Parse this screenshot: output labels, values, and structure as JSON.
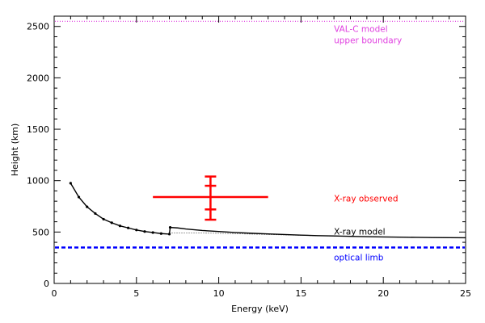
{
  "chart_data": {
    "type": "line",
    "title": "",
    "xlabel": "Energy (keV)",
    "ylabel": "Height (km)",
    "xlim": [
      0,
      25
    ],
    "ylim": [
      0,
      2600
    ],
    "x_ticks": [
      0,
      5,
      10,
      15,
      20,
      25
    ],
    "y_ticks": [
      0,
      500,
      1000,
      1500,
      2000,
      2500
    ],
    "grid": false,
    "series": [
      {
        "color": "#000000",
        "style": "solid-with-points",
        "x": [
          1.0,
          1.5,
          2.0,
          2.5,
          3.0,
          3.5,
          4.0,
          4.5,
          5.0,
          5.5,
          6.0,
          6.5,
          7.0,
          7.05,
          7.5,
          8,
          9,
          10,
          11,
          12,
          13,
          14,
          15,
          16,
          17,
          18,
          19,
          20,
          21,
          22,
          23,
          24,
          25
        ],
        "y": [
          975,
          840,
          745,
          680,
          625,
          590,
          560,
          540,
          520,
          505,
          495,
          485,
          480,
          545,
          540,
          530,
          515,
          505,
          495,
          488,
          482,
          476,
          470,
          465,
          462,
          458,
          455,
          452,
          450,
          448,
          446,
          445,
          444
        ]
      },
      {
        "color": "#000000",
        "style": "dotted",
        "x": [
          7,
          8,
          9,
          10,
          11,
          12,
          13,
          14,
          15,
          16,
          17,
          18,
          19,
          20,
          21,
          22,
          23,
          24,
          25
        ],
        "y": [
          490,
          490,
          490,
          488,
          484,
          480,
          476,
          472,
          468,
          464,
          461,
          458,
          455,
          452,
          450,
          448,
          446,
          445,
          444
        ]
      }
    ],
    "reference_lines": [
      {
        "y": 2550,
        "color": "#e040e0",
        "style": "dotted"
      },
      {
        "y": 350,
        "color": "#0000ff",
        "style": "dashed"
      }
    ],
    "error_point": {
      "x": 9.5,
      "y": 840,
      "x_range": [
        6.0,
        13.0
      ],
      "y_outer": [
        620,
        1040
      ],
      "y_inner": [
        720,
        950
      ],
      "color": "#ff0000"
    },
    "annotations": [
      {
        "text": "VAL-C model",
        "x": 17.0,
        "y": 2480,
        "color": "#e040e0"
      },
      {
        "text": "upper boundary",
        "x": 17.0,
        "y": 2370,
        "color": "#e040e0"
      },
      {
        "text": "X-ray observed",
        "x": 17.0,
        "y": 830,
        "color": "#ff0000"
      },
      {
        "text": "X-ray model",
        "x": 17.0,
        "y": 505,
        "color": "#000000"
      },
      {
        "text": "optical limb",
        "x": 17.0,
        "y": 255,
        "color": "#0000ff"
      }
    ]
  }
}
